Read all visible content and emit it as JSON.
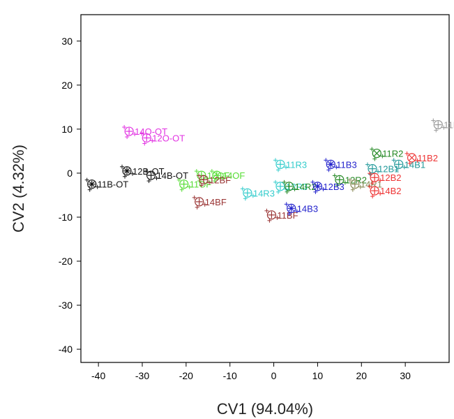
{
  "chart_data": {
    "type": "scatter",
    "xlabel": "CV1 (94.04%)",
    "ylabel": "CV2 (4.32%)",
    "xlim": [
      -44,
      40
    ],
    "ylim": [
      -43,
      36
    ],
    "xticks": [
      -40,
      -30,
      -20,
      -10,
      0,
      10,
      20,
      30
    ],
    "yticks": [
      -40,
      -30,
      -20,
      -10,
      0,
      10,
      20,
      30
    ],
    "grid": false,
    "colors": {
      "black": "#111111",
      "magenta": "#e233e2",
      "green": "#55dd33",
      "darkred": "#993333",
      "cyan": "#33cccc",
      "darkgreen": "#228822",
      "blue": "#2222cc",
      "red": "#ee3333",
      "teal": "#22999a",
      "gray": "#999999",
      "olive": "#888855"
    },
    "points": [
      {
        "label": "11B-OT",
        "x": -41.5,
        "y": -2.5,
        "color": "#111111",
        "marker": "circle-star"
      },
      {
        "label": "12B-OT",
        "x": -33.5,
        "y": 0.5,
        "color": "#111111",
        "marker": "circle-star"
      },
      {
        "label": "14B-OT",
        "x": -28.0,
        "y": -0.5,
        "color": "#111111",
        "marker": "circle-plus"
      },
      {
        "label": "14O-OT",
        "x": -33.0,
        "y": 9.5,
        "color": "#e233e2",
        "marker": "circle-plus"
      },
      {
        "label": "12O-OT",
        "x": -29.0,
        "y": 8.0,
        "color": "#e233e2",
        "marker": "circle-plus"
      },
      {
        "label": "11OF",
        "x": -20.5,
        "y": -2.5,
        "color": "#55dd33",
        "marker": "circle-plus"
      },
      {
        "label": "12OF",
        "x": -16.5,
        "y": -0.5,
        "color": "#55dd33",
        "marker": "circle-plus"
      },
      {
        "label": "14OF",
        "x": -13.0,
        "y": -0.5,
        "color": "#55dd33",
        "marker": "circle-plus"
      },
      {
        "label": "12BF",
        "x": -16.0,
        "y": -1.5,
        "color": "#993333",
        "marker": "circle-plus"
      },
      {
        "label": "14BF",
        "x": -17.0,
        "y": -6.5,
        "color": "#993333",
        "marker": "circle-plus"
      },
      {
        "label": "11BF",
        "x": -0.5,
        "y": -9.5,
        "color": "#993333",
        "marker": "circle-plus"
      },
      {
        "label": "14R3",
        "x": -6.0,
        "y": -4.5,
        "color": "#33cccc",
        "marker": "circle-plus"
      },
      {
        "label": "11R3",
        "x": 1.5,
        "y": 2.0,
        "color": "#33cccc",
        "marker": "circle-plus"
      },
      {
        "label": "12R3",
        "x": 1.5,
        "y": -3.0,
        "color": "#33cccc",
        "marker": "circle-plus"
      },
      {
        "label": "14R2",
        "x": 3.5,
        "y": -3.0,
        "color": "#228822",
        "marker": "circle-plus"
      },
      {
        "label": "12R2",
        "x": 15.0,
        "y": -1.5,
        "color": "#228822",
        "marker": "circle-plus"
      },
      {
        "label": "11R2",
        "x": 23.5,
        "y": 4.5,
        "color": "#228822",
        "marker": "circle-x"
      },
      {
        "label": "14B3",
        "x": 4.0,
        "y": -8.0,
        "color": "#2222cc",
        "marker": "circle-star"
      },
      {
        "label": "12B3",
        "x": 10.0,
        "y": -3.0,
        "color": "#2222cc",
        "marker": "circle-star"
      },
      {
        "label": "11B3",
        "x": 13.0,
        "y": 2.0,
        "color": "#2222cc",
        "marker": "circle-star"
      },
      {
        "label": "12B1",
        "x": 22.5,
        "y": 1.0,
        "color": "#22999a",
        "marker": "circle-plus"
      },
      {
        "label": "14B1",
        "x": 28.5,
        "y": 2.0,
        "color": "#22999a",
        "marker": "circle-plus"
      },
      {
        "label": "14R1",
        "x": 18.5,
        "y": -2.5,
        "color": "#888855",
        "marker": "circle-plus"
      },
      {
        "label": "11R1",
        "x": 37.5,
        "y": 11.0,
        "color": "#999999",
        "marker": "circle-plus"
      },
      {
        "label": "11B2",
        "x": 31.5,
        "y": 3.5,
        "color": "#ee3333",
        "marker": "circle-x"
      },
      {
        "label": "12B2",
        "x": 23.0,
        "y": -1.0,
        "color": "#ee3333",
        "marker": "circle-plus"
      },
      {
        "label": "14B2",
        "x": 23.0,
        "y": -4.0,
        "color": "#ee3333",
        "marker": "circle-plus"
      }
    ]
  }
}
